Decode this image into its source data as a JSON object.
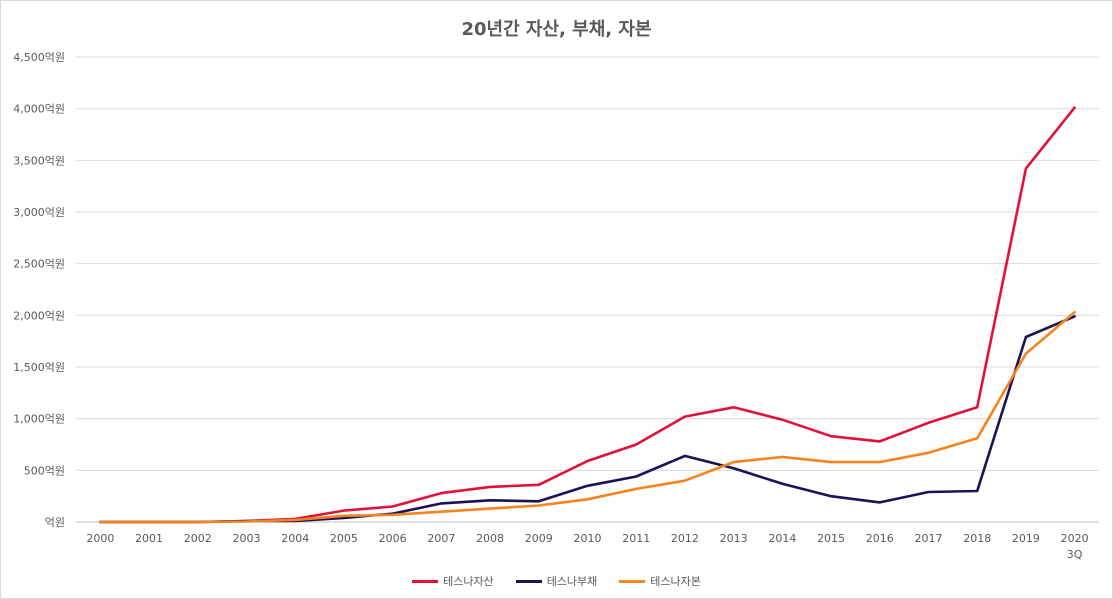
{
  "chart_data": {
    "type": "line",
    "title": "20년간 자산, 부채, 자본",
    "categories": [
      "2000",
      "2001",
      "2002",
      "2003",
      "2004",
      "2005",
      "2006",
      "2007",
      "2008",
      "2009",
      "2010",
      "2011",
      "2012",
      "2013",
      "2014",
      "2015",
      "2016",
      "2017",
      "2018",
      "2019",
      "2020\n3Q"
    ],
    "y_ticks": [
      "억원",
      "500억원",
      "1,000억원",
      "1,500억원",
      "2,000억원",
      "2,500억원",
      "3,000억원",
      "3,500억원",
      "4,000억원",
      "4,500억원"
    ],
    "ylim": [
      0,
      4500
    ],
    "grid": true,
    "legend_position": "bottom",
    "series": [
      {
        "name": "테스나자산",
        "color": "#e0123c",
        "values": [
          0,
          0,
          0,
          10,
          30,
          110,
          150,
          280,
          340,
          360,
          590,
          750,
          1020,
          1110,
          990,
          830,
          780,
          960,
          1110,
          3420,
          4010
        ]
      },
      {
        "name": "테스나부채",
        "color": "#1b1257",
        "values": [
          0,
          0,
          0,
          10,
          10,
          40,
          80,
          180,
          210,
          200,
          350,
          440,
          640,
          520,
          370,
          250,
          190,
          290,
          300,
          1790,
          1990
        ]
      },
      {
        "name": "테스나자본",
        "color": "#f5841f",
        "values": [
          0,
          0,
          0,
          5,
          20,
          60,
          70,
          100,
          130,
          160,
          220,
          320,
          400,
          580,
          630,
          580,
          580,
          670,
          810,
          1630,
          2030
        ]
      }
    ]
  }
}
